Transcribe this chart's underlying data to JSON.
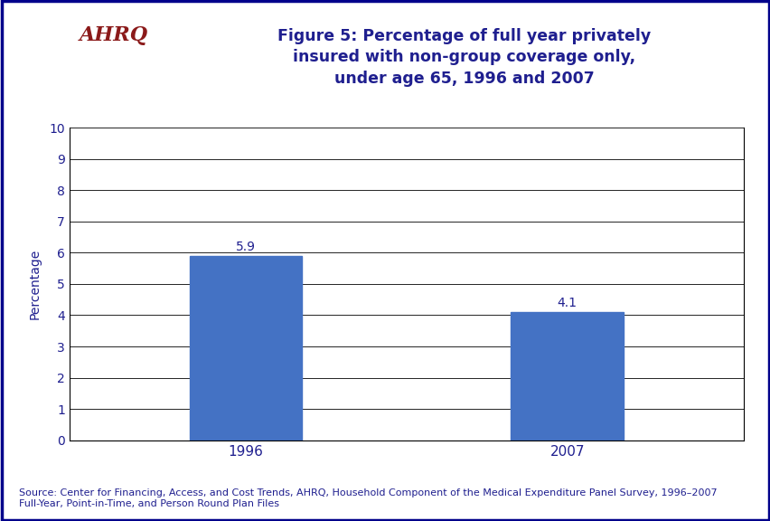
{
  "categories": [
    "1996",
    "2007"
  ],
  "values": [
    5.9,
    4.1
  ],
  "bar_color": "#4472C4",
  "title_line1": "Figure 5: Percentage of full year privately",
  "title_line2": "insured with non-group coverage only,",
  "title_line3": "under age 65, 1996 and 2007",
  "ylabel": "Percentage",
  "ylim": [
    0,
    10
  ],
  "yticks": [
    0,
    1,
    2,
    3,
    4,
    5,
    6,
    7,
    8,
    9,
    10
  ],
  "title_color": "#1F1F8F",
  "axis_label_color": "#1F1F8F",
  "tick_label_color": "#1F1F8F",
  "bar_label_color": "#1F1F8F",
  "background_color": "#ffffff",
  "source_text": "Source: Center for Financing, Access, and Cost Trends, AHRQ, Household Component of the Medical Expenditure Panel Survey, 1996–2007\nFull-Year, Point-in-Time, and Person Round Plan Files",
  "header_bar_color": "#00008B",
  "outer_border_color": "#00008B",
  "title_fontsize": 12.5,
  "ylabel_fontsize": 10,
  "tick_fontsize": 10,
  "source_fontsize": 8,
  "bar_label_fontsize": 10,
  "bar_width": 0.35,
  "logo_bg_color": "#2B9CC4",
  "logo_text_color_ahrq": "#8B0000",
  "logo_subtext_color": "#1F1F8F"
}
